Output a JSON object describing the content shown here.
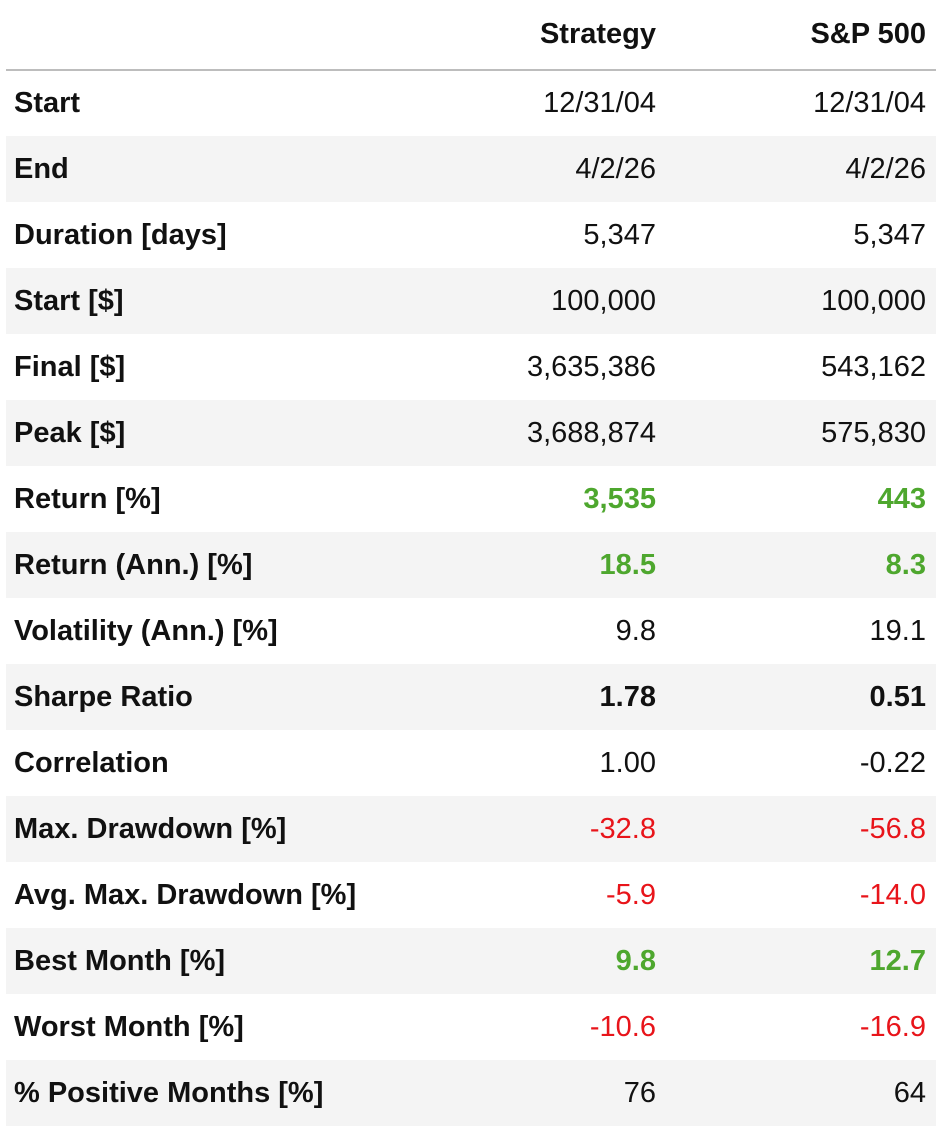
{
  "header": {
    "corner": "",
    "col_strategy": "Strategy",
    "col_benchmark": "S&P 500"
  },
  "rows": [
    {
      "label": "Start",
      "strategy": "12/31/04",
      "benchmark": "12/31/04",
      "style": "plain"
    },
    {
      "label": "End",
      "strategy": "4/2/26",
      "benchmark": "4/2/26",
      "style": "plain"
    },
    {
      "label": "Duration [days]",
      "strategy": "5,347",
      "benchmark": "5,347",
      "style": "plain"
    },
    {
      "label": "Start [$]",
      "strategy": "100,000",
      "benchmark": "100,000",
      "style": "plain"
    },
    {
      "label": "Final [$]",
      "strategy": "3,635,386",
      "benchmark": "543,162",
      "style": "plain"
    },
    {
      "label": "Peak [$]",
      "strategy": "3,688,874",
      "benchmark": "575,830",
      "style": "plain"
    },
    {
      "label": "Return [%]",
      "strategy": "3,535",
      "benchmark": "443",
      "style": "positive"
    },
    {
      "label": "Return (Ann.) [%]",
      "strategy": "18.5",
      "benchmark": "8.3",
      "style": "positive"
    },
    {
      "label": "Volatility (Ann.) [%]",
      "strategy": "9.8",
      "benchmark": "19.1",
      "style": "plain"
    },
    {
      "label": "Sharpe Ratio",
      "strategy": "1.78",
      "benchmark": "0.51",
      "style": "bold"
    },
    {
      "label": "Correlation",
      "strategy": "1.00",
      "benchmark": "-0.22",
      "style": "plain"
    },
    {
      "label": "Max. Drawdown [%]",
      "strategy": "-32.8",
      "benchmark": "-56.8",
      "style": "negative"
    },
    {
      "label": "Avg. Max. Drawdown [%]",
      "strategy": "-5.9",
      "benchmark": "-14.0",
      "style": "negative"
    },
    {
      "label": "Best Month [%]",
      "strategy": "9.8",
      "benchmark": "12.7",
      "style": "positive"
    },
    {
      "label": "Worst Month [%]",
      "strategy": "-10.6",
      "benchmark": "-16.9",
      "style": "negative"
    },
    {
      "label": "% Positive Months [%]",
      "strategy": "76",
      "benchmark": "64",
      "style": "plain"
    }
  ],
  "colors": {
    "positive": "#4ea72e",
    "negative": "#e8141a",
    "stripe": "#f4f4f4",
    "header_rule": "#bdbdbd"
  }
}
